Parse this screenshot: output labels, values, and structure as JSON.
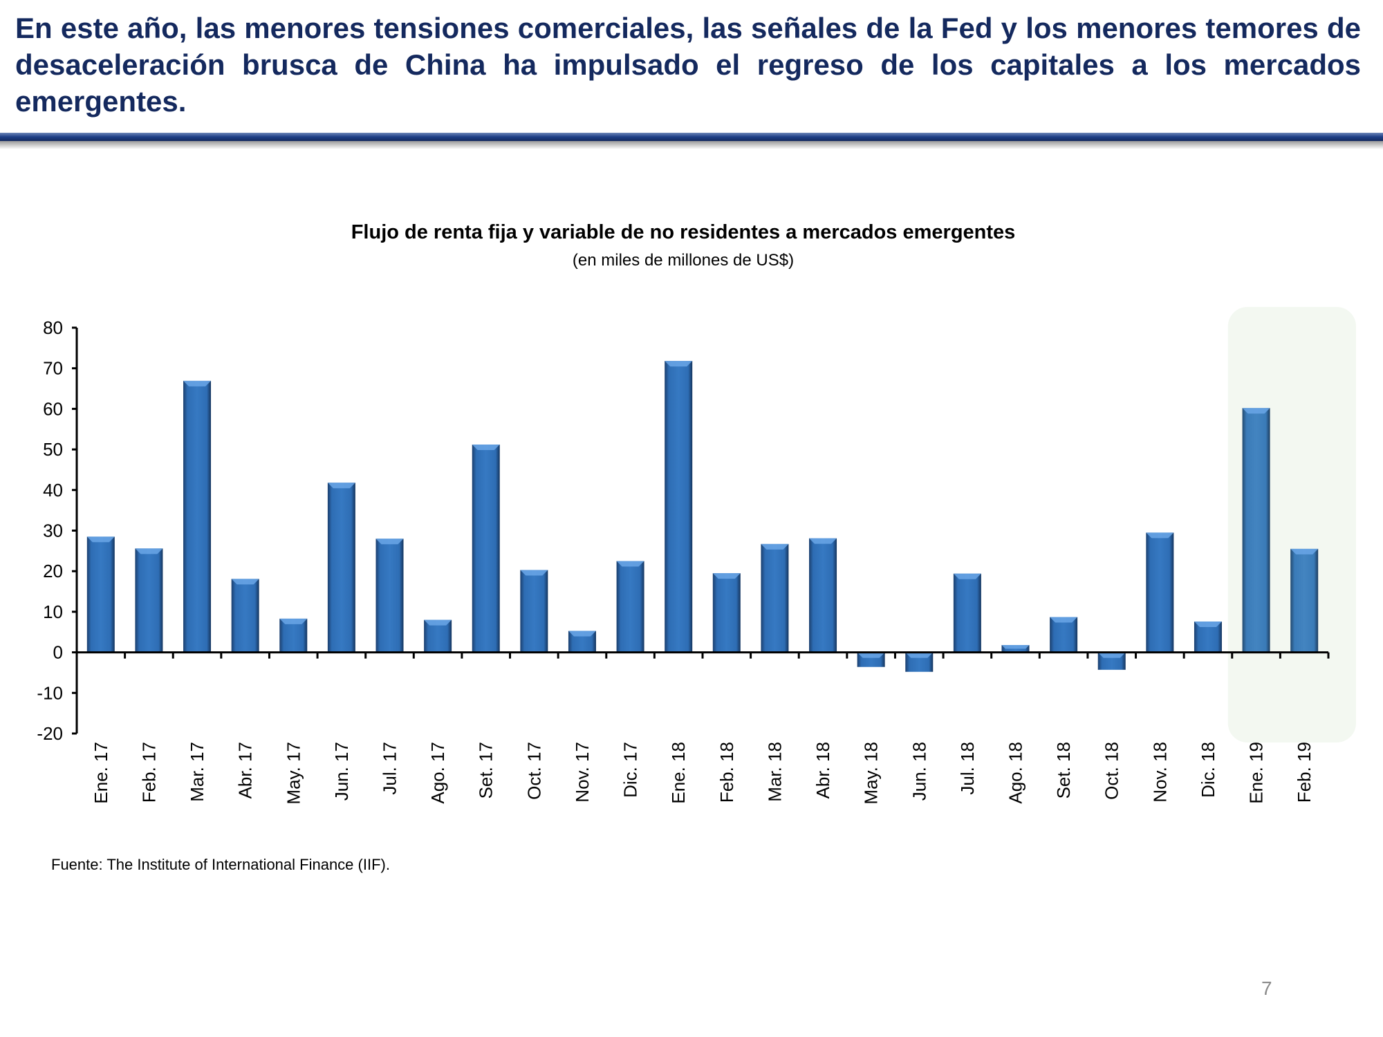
{
  "headline": "En este año, las menores tensiones comerciales, las señales de la Fed y los menores temores de desaceleración brusca de China ha impulsado el regreso de los capitales a los mercados emergentes.",
  "source": "Fuente: The Institute of International Finance (IIF).",
  "page_number": "7",
  "colors": {
    "bar": "#2e6db4",
    "highlight": "#f3f8f1",
    "headline": "#14295e"
  },
  "chart_data": {
    "type": "bar",
    "title": "Flujo de renta fija y variable de no residentes a mercados emergentes",
    "subtitle": "(en miles de millones de US$)",
    "xlabel": "",
    "ylabel": "",
    "ylim": [
      -20,
      80
    ],
    "yticks": [
      "80",
      "70",
      "60",
      "50",
      "40",
      "30",
      "20",
      "10",
      "0",
      "-10",
      "-20"
    ],
    "categories": [
      "Ene. 17",
      "Feb. 17",
      "Mar. 17",
      "Abr. 17",
      "May. 17",
      "Jun. 17",
      "Jul. 17",
      "Ago. 17",
      "Set. 17",
      "Oct. 17",
      "Nov. 17",
      "Dic. 17",
      "Ene. 18",
      "Feb. 18",
      "Mar. 18",
      "Abr. 18",
      "May. 18",
      "Jun. 18",
      "Jul. 18",
      "Ago. 18",
      "Set. 18",
      "Oct. 18",
      "Nov. 18",
      "Dic. 18",
      "Ene. 19",
      "Feb. 19"
    ],
    "values": [
      28.5,
      25.6,
      66.9,
      18.1,
      8.3,
      41.8,
      28.0,
      8.0,
      51.2,
      20.3,
      5.3,
      22.5,
      71.8,
      19.5,
      26.7,
      28.1,
      -3.6,
      -4.8,
      19.4,
      1.8,
      8.7,
      -4.3,
      29.5,
      7.6,
      60.2,
      25.5
    ],
    "highlighted_categories": [
      "Ene. 19",
      "Feb. 19"
    ],
    "grid": false,
    "legend": "none"
  }
}
